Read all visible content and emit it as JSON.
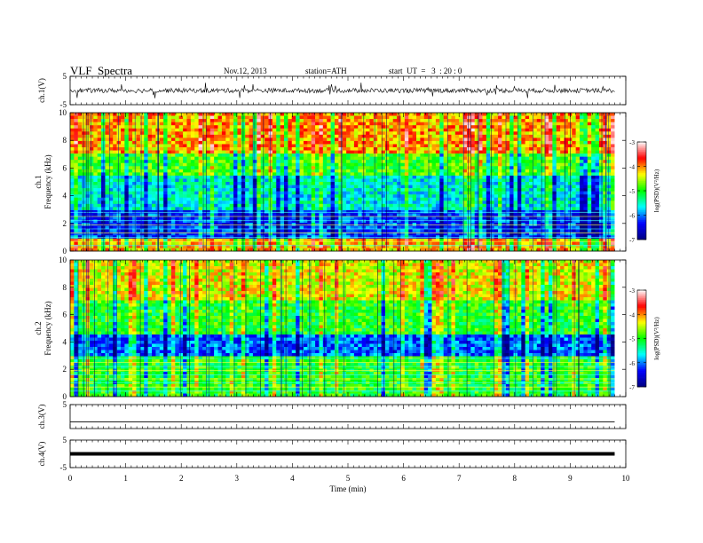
{
  "header": {
    "title": "VLF  Spectra",
    "date": "Nov.12, 2013",
    "station": "station=ATH",
    "start": "start  UT  =   3  : 20 : 0"
  },
  "chart_data": [
    {
      "type": "line",
      "channel": "ch.1",
      "ylabel": "ch.1(V)",
      "ylim": [
        -5,
        5
      ],
      "yticks": [
        "5",
        "-5"
      ],
      "xlim": [
        0,
        10
      ],
      "style": "dense noisy waveform, black"
    },
    {
      "type": "heatmap",
      "channel": "ch.1",
      "ylabel": "ch.1 Frequency (kHz)",
      "ylim": [
        0,
        10
      ],
      "yticks": [
        "0",
        "2",
        "4",
        "6",
        "8",
        "10"
      ],
      "xlim": [
        0,
        10
      ],
      "data_extent_min": 9.8,
      "colorbar": {
        "label": "log(PSD)(V²/Hz)",
        "range": [
          -7,
          -3
        ],
        "ticks": [
          "-3",
          "-4",
          "-5",
          "-6",
          "-7"
        ]
      },
      "bands_kHz": [
        {
          "from": 0,
          "to": 1,
          "level": -4.2,
          "desc": "red/yellow low band"
        },
        {
          "from": 1,
          "to": 3,
          "level": -6.2,
          "desc": "blue with cyan horizontal lines"
        },
        {
          "from": 3,
          "to": 5.5,
          "level": -5.6,
          "desc": "blue/cyan"
        },
        {
          "from": 5.5,
          "to": 7,
          "level": -4.9,
          "desc": "green"
        },
        {
          "from": 7,
          "to": 10,
          "level": -4.1,
          "desc": "yellow/red"
        }
      ]
    },
    {
      "type": "heatmap",
      "channel": "ch.2",
      "ylabel": "ch.2 Frequency (kHz)",
      "ylim": [
        0,
        10
      ],
      "yticks": [
        "0",
        "2",
        "4",
        "6",
        "8",
        "10"
      ],
      "xlim": [
        0,
        10
      ],
      "data_extent_min": 9.8,
      "colorbar": {
        "label": "log(PSD)(V²/Hz)",
        "range": [
          -7,
          -3
        ],
        "ticks": [
          "-3",
          "-4",
          "-5",
          "-6",
          "-7"
        ]
      },
      "bands_kHz": [
        {
          "from": 0,
          "to": 3,
          "level": -5.0,
          "desc": "green/cyan with horizontal lines"
        },
        {
          "from": 3,
          "to": 4.5,
          "level": -6.1,
          "desc": "blue"
        },
        {
          "from": 4.5,
          "to": 7,
          "level": -5.0,
          "desc": "green"
        },
        {
          "from": 7,
          "to": 10,
          "level": -4.4,
          "desc": "yellow/green"
        }
      ]
    },
    {
      "type": "line",
      "channel": "ch.3",
      "ylabel": "ch.3(V)",
      "ylim": [
        -5,
        5
      ],
      "yticks": [
        "5"
      ],
      "xlim": [
        0,
        10
      ],
      "style": "thin flat line near zero"
    },
    {
      "type": "line",
      "channel": "ch.4",
      "ylabel": "ch.4(V)",
      "ylim": [
        -5,
        5
      ],
      "yticks": [
        "5",
        "-5"
      ],
      "xlim": [
        0,
        10
      ],
      "style": "thick flat line near zero"
    }
  ],
  "xaxis": {
    "label": "Time  (min)",
    "ticks": [
      "0",
      "1",
      "2",
      "3",
      "4",
      "5",
      "6",
      "7",
      "8",
      "9",
      "10"
    ]
  },
  "colors": {
    "colormap": [
      "#000080",
      "#0000ff",
      "#00ffff",
      "#00ff00",
      "#ffff00",
      "#ff0000",
      "#ffffff"
    ]
  }
}
